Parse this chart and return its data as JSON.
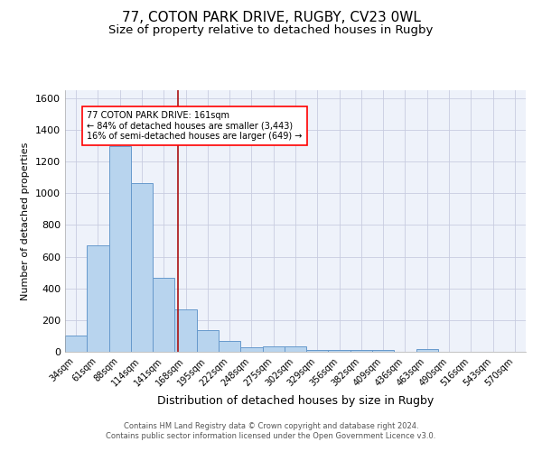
{
  "title": "77, COTON PARK DRIVE, RUGBY, CV23 0WL",
  "subtitle": "Size of property relative to detached houses in Rugby",
  "xlabel": "Distribution of detached houses by size in Rugby",
  "ylabel": "Number of detached properties",
  "footer_line1": "Contains HM Land Registry data © Crown copyright and database right 2024.",
  "footer_line2": "Contains public sector information licensed under the Open Government Licence v3.0.",
  "bar_labels": [
    "34sqm",
    "61sqm",
    "88sqm",
    "114sqm",
    "141sqm",
    "168sqm",
    "195sqm",
    "222sqm",
    "248sqm",
    "275sqm",
    "302sqm",
    "329sqm",
    "356sqm",
    "382sqm",
    "409sqm",
    "436sqm",
    "463sqm",
    "490sqm",
    "516sqm",
    "543sqm",
    "570sqm"
  ],
  "bar_values": [
    100,
    670,
    1300,
    1065,
    465,
    265,
    135,
    70,
    30,
    32,
    32,
    10,
    10,
    10,
    10,
    0,
    15,
    0,
    0,
    0,
    0
  ],
  "bar_color": "#b8d4ee",
  "bar_edge_color": "#6699cc",
  "ylim": [
    0,
    1650
  ],
  "yticks": [
    0,
    200,
    400,
    600,
    800,
    1000,
    1200,
    1400,
    1600
  ],
  "vline_x": 4.65,
  "vline_color": "#aa1111",
  "annotation_text": "77 COTON PARK DRIVE: 161sqm\n← 84% of detached houses are smaller (3,443)\n16% of semi-detached houses are larger (649) →",
  "background_color": "#eef2fa",
  "grid_color": "#c8cce0",
  "title_fontsize": 11,
  "subtitle_fontsize": 9.5,
  "ylabel_fontsize": 8,
  "xlabel_fontsize": 9,
  "tick_fontsize": 7,
  "ytick_fontsize": 8,
  "footer_fontsize": 6,
  "ann_fontsize": 7
}
